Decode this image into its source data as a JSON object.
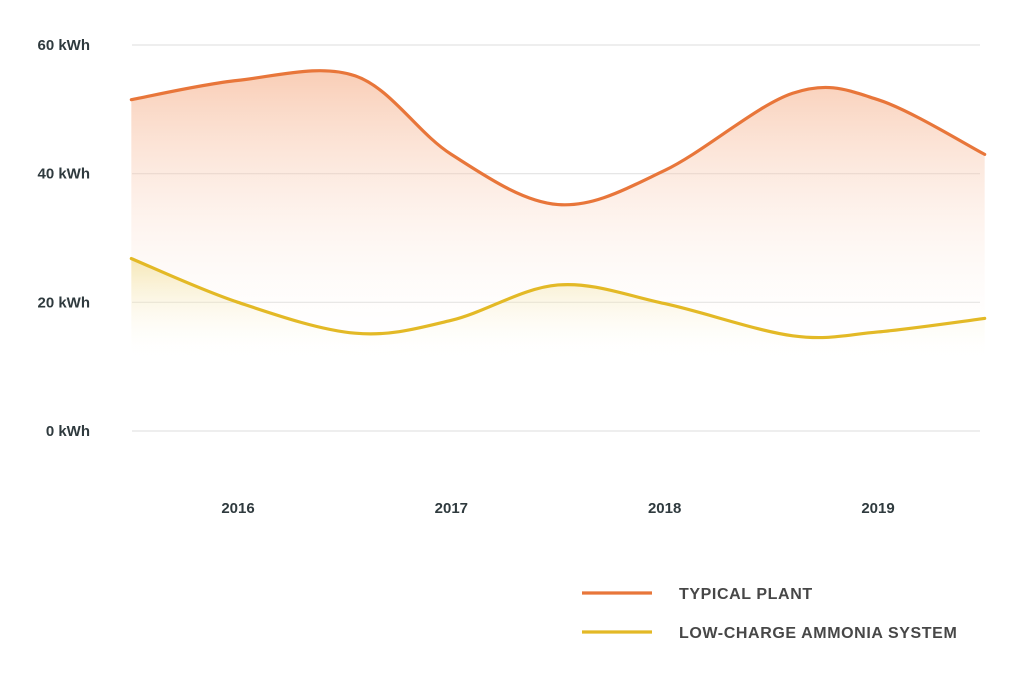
{
  "chart_data": {
    "type": "area",
    "title": "",
    "xlabel": "",
    "ylabel": "",
    "unit": "kWh",
    "ylim": [
      0,
      60
    ],
    "yticks": [
      0,
      20,
      40,
      60
    ],
    "ytick_labels": [
      "0 kWh",
      "20 kWh",
      "40 kWh",
      "60 kWh"
    ],
    "categories": [
      "2016",
      "2017",
      "2018",
      "2019"
    ],
    "x": [
      2015.5,
      2016.0,
      2016.55,
      2017.0,
      2017.5,
      2018.0,
      2018.6,
      2019.0,
      2019.5
    ],
    "grid": true,
    "legend_position": "bottom-right",
    "series": [
      {
        "name": "TYPICAL PLANT",
        "color": "#e8763a",
        "values": [
          51.5,
          54.5,
          55.2,
          43.0,
          35.2,
          40.5,
          52.5,
          51.5,
          43.0
        ]
      },
      {
        "name": "LOW-CHARGE AMMONIA SYSTEM",
        "color": "#e3b926",
        "values": [
          26.8,
          20.0,
          15.2,
          17.2,
          22.7,
          19.8,
          14.8,
          15.4,
          17.5
        ]
      }
    ]
  }
}
